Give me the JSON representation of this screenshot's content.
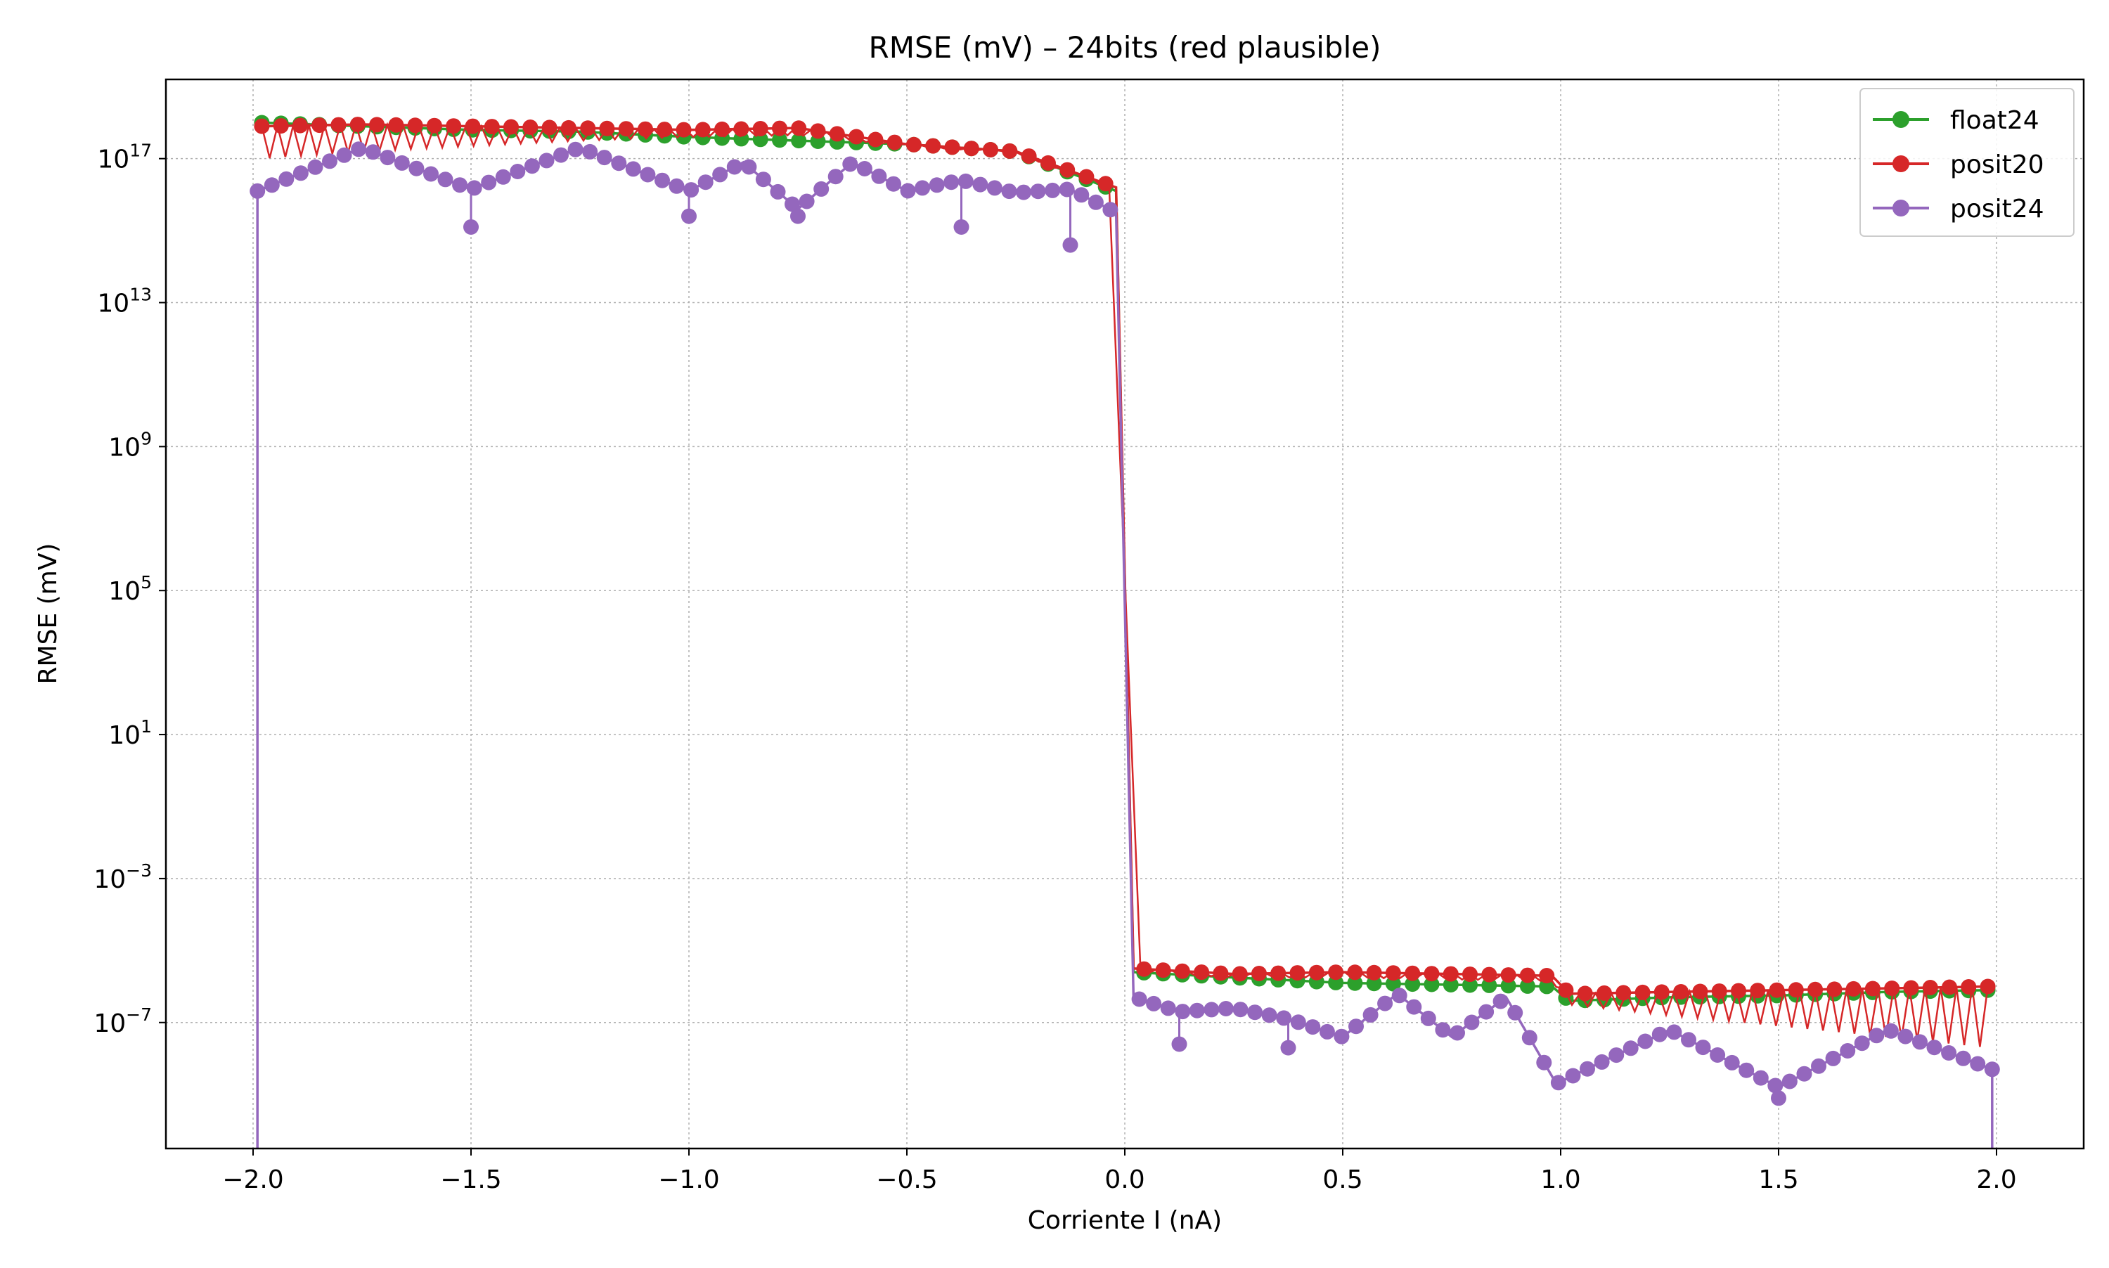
{
  "chart_data": {
    "type": "line",
    "title": "RMSE (mV) – 24bits (red plausible)",
    "xlabel": "Corriente I (nA)",
    "ylabel": "RMSE (mV)",
    "xlim": [
      -2.2,
      2.2
    ],
    "ylim_log10": [
      -10.5,
      19.2
    ],
    "yscale": "log",
    "grid": true,
    "legend_position": "top-right",
    "x_ticks": [
      {
        "value": -2.0,
        "label": "−2.0"
      },
      {
        "value": -1.5,
        "label": "−1.5"
      },
      {
        "value": -1.0,
        "label": "−1.0"
      },
      {
        "value": -0.5,
        "label": "−0.5"
      },
      {
        "value": 0.0,
        "label": "0.0"
      },
      {
        "value": 0.5,
        "label": "0.5"
      },
      {
        "value": 1.0,
        "label": "1.0"
      },
      {
        "value": 1.5,
        "label": "1.5"
      },
      {
        "value": 2.0,
        "label": "2.0"
      }
    ],
    "y_ticks": [
      {
        "exp": 17,
        "base": "10",
        "sup": "17"
      },
      {
        "exp": 13,
        "base": "10",
        "sup": "13"
      },
      {
        "exp": 9,
        "base": "10",
        "sup": "9"
      },
      {
        "exp": 5,
        "base": "10",
        "sup": "5"
      },
      {
        "exp": 1,
        "base": "10",
        "sup": "1"
      },
      {
        "exp": -3,
        "base": "10",
        "sup": "−3"
      },
      {
        "exp": -7,
        "base": "10",
        "sup": "−7"
      }
    ],
    "series": [
      {
        "name": "float24",
        "color": "#2ca02c",
        "x": [
          -1.98,
          -1.75,
          -1.5,
          -1.25,
          -1.0,
          -0.75,
          -0.5,
          -0.25,
          -0.02,
          0.02,
          0.25,
          0.5,
          0.75,
          0.98,
          1.02,
          1.25,
          1.5,
          1.75,
          1.98
        ],
        "log10_y": [
          18.0,
          17.9,
          17.8,
          17.75,
          17.6,
          17.5,
          17.4,
          17.2,
          16.1,
          -5.6,
          -5.75,
          -5.9,
          -5.95,
          -6.0,
          -6.4,
          -6.3,
          -6.25,
          -6.15,
          -6.1
        ]
      },
      {
        "name": "posit20",
        "color": "#d62728",
        "x": [
          -1.98,
          -1.75,
          -1.5,
          -1.25,
          -1.0,
          -0.75,
          -0.5,
          -0.25,
          -0.02,
          0.02,
          0.25,
          0.5,
          0.75,
          0.98,
          1.02,
          1.25,
          1.5,
          1.75,
          1.98
        ],
        "log10_y": [
          17.9,
          17.95,
          17.9,
          17.85,
          17.8,
          17.85,
          17.4,
          17.2,
          16.2,
          -5.5,
          -5.65,
          -5.6,
          -5.65,
          -5.7,
          -6.2,
          -6.15,
          -6.1,
          -6.05,
          -6.0
        ],
        "low_envelope_log10_y": [
          17.0,
          17.2,
          17.35,
          17.5,
          17.6,
          17.65,
          17.35,
          17.15,
          16.1,
          -5.6,
          -5.75,
          -5.75,
          -5.8,
          -5.85,
          -6.5,
          -6.8,
          -7.1,
          -7.4,
          -7.7
        ]
      },
      {
        "name": "posit24",
        "color": "#9467bd",
        "x": [
          -1.99,
          -1.75,
          -1.5,
          -1.25,
          -1.0,
          -0.875,
          -0.75,
          -0.625,
          -0.5,
          -0.375,
          -0.25,
          -0.125,
          -0.02,
          0.02,
          0.125,
          0.25,
          0.375,
          0.5,
          0.625,
          0.75,
          0.875,
          0.99,
          1.25,
          1.5,
          1.75,
          1.99
        ],
        "log10_y": [
          16.1,
          17.3,
          16.15,
          17.3,
          16.1,
          16.9,
          15.6,
          16.9,
          16.1,
          16.4,
          16.05,
          16.15,
          15.5,
          -6.3,
          -6.7,
          -6.6,
          -6.9,
          -7.4,
          -6.2,
          -7.4,
          -6.3,
          -8.7,
          -7.2,
          -8.8,
          -7.2,
          -8.3
        ],
        "dips": [
          {
            "x": -1.5,
            "log10_y": 15.1
          },
          {
            "x": -1.0,
            "log10_y": 15.4
          },
          {
            "x": -0.75,
            "log10_y": 15.4
          },
          {
            "x": -0.375,
            "log10_y": 15.1
          },
          {
            "x": -0.125,
            "log10_y": 14.6
          },
          {
            "x": 0.125,
            "log10_y": -7.6
          },
          {
            "x": 0.375,
            "log10_y": -7.7
          },
          {
            "x": 1.5,
            "log10_y": -9.1
          }
        ]
      }
    ]
  }
}
